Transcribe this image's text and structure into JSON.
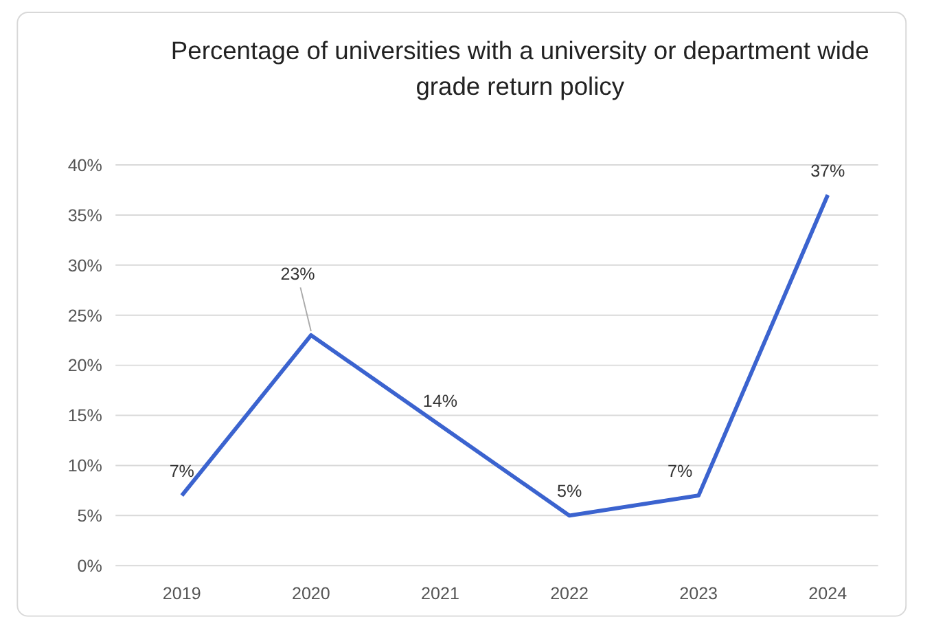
{
  "chart_data": {
    "type": "line",
    "title": "Percentage of universities with a university or department wide grade return policy",
    "categories": [
      "2019",
      "2020",
      "2021",
      "2022",
      "2023",
      "2024"
    ],
    "series": [
      {
        "color": "#3b63cf",
        "values": [
          7,
          23,
          14,
          5,
          7,
          37
        ]
      }
    ],
    "value_labels": [
      "7%",
      "23%",
      "14%",
      "5%",
      "7%",
      "37%"
    ],
    "ylim": [
      0,
      40
    ],
    "yticks": [
      {
        "value": 0,
        "label": "0%"
      },
      {
        "value": 5,
        "label": "5%"
      },
      {
        "value": 10,
        "label": "10%"
      },
      {
        "value": 15,
        "label": "15%"
      },
      {
        "value": 20,
        "label": "20%"
      },
      {
        "value": 25,
        "label": "25%"
      },
      {
        "value": 30,
        "label": "30%"
      },
      {
        "value": 35,
        "label": "35%"
      },
      {
        "value": 40,
        "label": "40%"
      }
    ],
    "grid": "y",
    "marker": "none",
    "line_style": "solid"
  }
}
